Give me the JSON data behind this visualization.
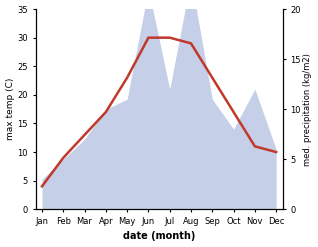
{
  "months": [
    "Jan",
    "Feb",
    "Mar",
    "Apr",
    "May",
    "Jun",
    "Jul",
    "Aug",
    "Sep",
    "Oct",
    "Nov",
    "Dec"
  ],
  "temperature": [
    4,
    9,
    13,
    17,
    23,
    30,
    30,
    29,
    23,
    17,
    11,
    10
  ],
  "precipitation": [
    3,
    5,
    7,
    10,
    11,
    22,
    12,
    23,
    11,
    8,
    12,
    6
  ],
  "temp_color": "#c0392b",
  "precip_color": "#c5cfe8",
  "temp_ylim": [
    0,
    35
  ],
  "temp_yticks": [
    0,
    5,
    10,
    15,
    20,
    25,
    30,
    35
  ],
  "precip_ylim": [
    0,
    20
  ],
  "precip_yticks": [
    0,
    5,
    10,
    15,
    20
  ],
  "ylabel_left": "max temp (C)",
  "ylabel_right": "med. precipitation (kg/m2)",
  "xlabel": "date (month)",
  "fig_width": 3.18,
  "fig_height": 2.47,
  "dpi": 100
}
